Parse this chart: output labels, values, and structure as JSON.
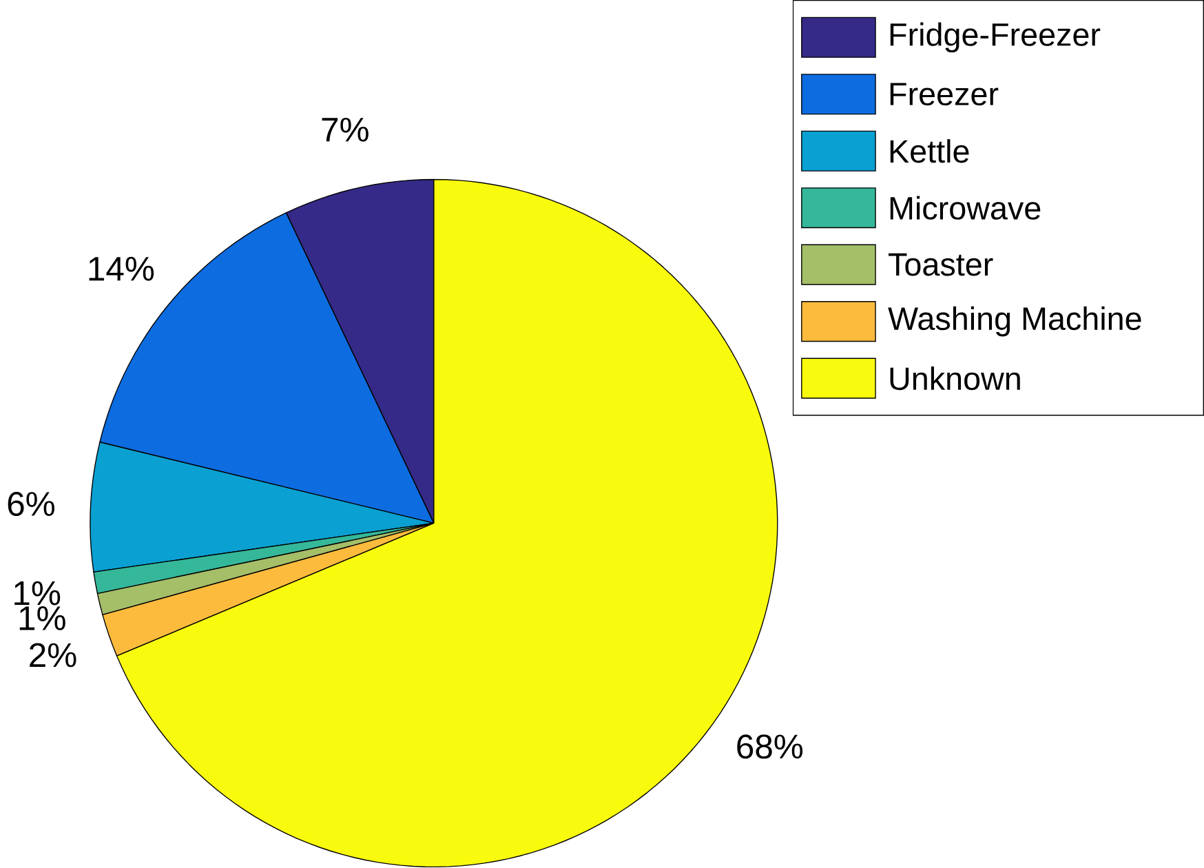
{
  "chart_data": {
    "type": "pie",
    "categories": [
      "Fridge-Freezer",
      "Freezer",
      "Kettle",
      "Microwave",
      "Toaster",
      "Washing Machine",
      "Unknown"
    ],
    "values": [
      7,
      14,
      6,
      1,
      1,
      2,
      68
    ],
    "colors": [
      "#352a87",
      "#0d6ce0",
      "#0aa0d2",
      "#35b79a",
      "#a5be68",
      "#fdbb3e",
      "#f9fb0e"
    ],
    "value_labels": [
      "7%",
      "14%",
      "6%",
      "1%",
      "1%",
      "2%",
      "68%"
    ],
    "legend": "top right"
  }
}
